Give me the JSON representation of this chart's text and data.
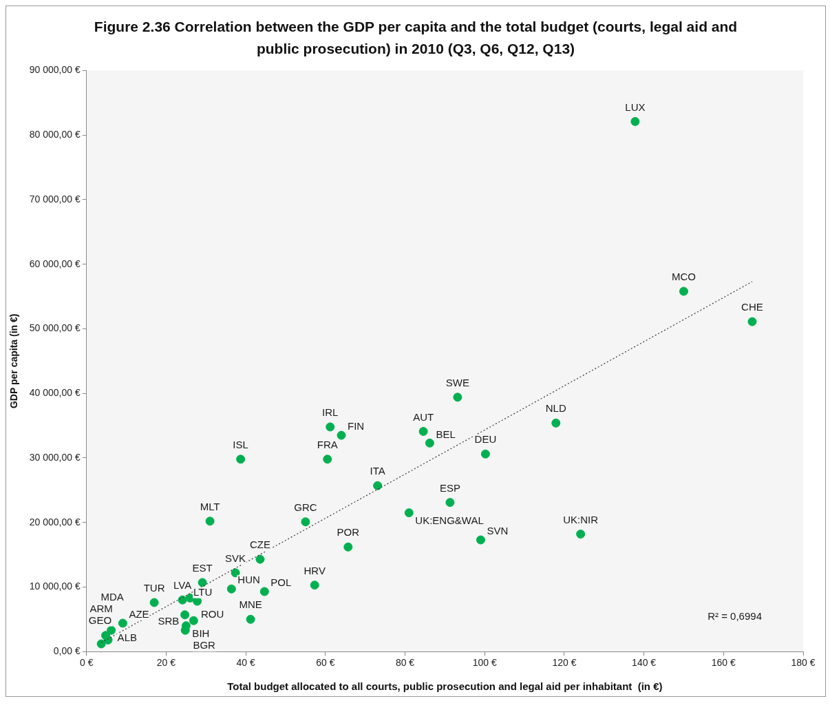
{
  "chart_data": {
    "type": "scatter",
    "title": "Figure 2.36 Correlation between the GDP per capita and the total budget (courts, legal aid and public prosecution) in 2010 (Q3, Q6, Q12, Q13)",
    "xlabel": "Total budget allocated to all courts, public prosecution and legal aid per inhabitant  (in €)",
    "ylabel": "GDP per capita (in €)",
    "xlim": [
      0,
      180
    ],
    "xticks": [
      {
        "value": 0,
        "label": "0 €"
      },
      {
        "value": 20,
        "label": "20 €"
      },
      {
        "value": 40,
        "label": "40 €"
      },
      {
        "value": 60,
        "label": "60 €"
      },
      {
        "value": 80,
        "label": "80 €"
      },
      {
        "value": 100,
        "label": "100 €"
      },
      {
        "value": 120,
        "label": "120 €"
      },
      {
        "value": 140,
        "label": "140 €"
      },
      {
        "value": 160,
        "label": "160 €"
      },
      {
        "value": 180,
        "label": "180 €"
      }
    ],
    "ylim": [
      0,
      90000
    ],
    "yticks": [
      {
        "value": 0,
        "label": "0,00 €"
      },
      {
        "value": 10000,
        "label": "10 000,00 €"
      },
      {
        "value": 20000,
        "label": "20 000,00 €"
      },
      {
        "value": 30000,
        "label": "30 000,00 €"
      },
      {
        "value": 40000,
        "label": "40 000,00 €"
      },
      {
        "value": 50000,
        "label": "50 000,00 €"
      },
      {
        "value": 60000,
        "label": "60 000,00 €"
      },
      {
        "value": 70000,
        "label": "70 000,00 €"
      },
      {
        "value": 80000,
        "label": "80 000,00 €"
      },
      {
        "value": 90000,
        "label": "90 000,00 €"
      }
    ],
    "grid": false,
    "legend": false,
    "marker": "circle",
    "series": [
      {
        "type": "scatter",
        "color": "#00b050",
        "x": [
          137.8,
          150.0,
          167.2,
          93.2,
          117.9,
          61.2,
          64.0,
          84.6,
          86.2,
          100.2,
          38.7,
          60.5,
          73.1,
          91.3,
          81.0,
          55.0,
          31.0,
          124.1,
          99.0,
          65.7,
          43.6,
          37.4,
          29.1,
          57.3,
          36.4,
          44.7,
          17.0,
          24.1,
          26.0,
          27.8,
          24.7,
          26.9,
          25.0,
          24.8,
          41.2,
          9.1,
          6.2,
          4.8,
          5.4,
          3.7
        ],
        "values": [
          82100,
          55800,
          51100,
          39400,
          35400,
          34800,
          33500,
          34100,
          32300,
          30600,
          29800,
          29800,
          25700,
          23100,
          21500,
          20100,
          20200,
          18200,
          17300,
          16200,
          14300,
          12200,
          10700,
          10300,
          9700,
          9300,
          7600,
          8000,
          8300,
          7800,
          5700,
          4800,
          4000,
          3300,
          5000,
          4400,
          3300,
          2500,
          1800,
          1200
        ]
      },
      {
        "type": "line",
        "color": "#404040",
        "line_style": "dotted",
        "marker": "none",
        "x": [
          3.7,
          167.2
        ],
        "values": [
          1400,
          57300
        ]
      }
    ],
    "annotations": [
      {
        "text": "LUX",
        "x": 137.8,
        "y": 82100
      },
      {
        "text": "MCO",
        "x": 150.0,
        "y": 55800
      },
      {
        "text": "CHE",
        "x": 167.2,
        "y": 51100
      },
      {
        "text": "SWE",
        "x": 93.2,
        "y": 39400
      },
      {
        "text": "NLD",
        "x": 117.9,
        "y": 35400
      },
      {
        "text": "IRL",
        "x": 61.2,
        "y": 34800
      },
      {
        "text": "FIN",
        "x": 64.0,
        "y": 33500
      },
      {
        "text": "AUT",
        "x": 84.6,
        "y": 34100
      },
      {
        "text": "BEL",
        "x": 86.2,
        "y": 32300
      },
      {
        "text": "DEU",
        "x": 100.2,
        "y": 30600
      },
      {
        "text": "ISL",
        "x": 38.7,
        "y": 29800
      },
      {
        "text": "FRA",
        "x": 60.5,
        "y": 29800
      },
      {
        "text": "ITA",
        "x": 73.1,
        "y": 25700
      },
      {
        "text": "ESP",
        "x": 91.3,
        "y": 23100
      },
      {
        "text": "UK:ENG&WAL",
        "x": 81.0,
        "y": 21500
      },
      {
        "text": "GRC",
        "x": 55.0,
        "y": 20100
      },
      {
        "text": "MLT",
        "x": 31.0,
        "y": 20200
      },
      {
        "text": "UK:NIR",
        "x": 124.1,
        "y": 18200
      },
      {
        "text": "SVN",
        "x": 99.0,
        "y": 17300
      },
      {
        "text": "POR",
        "x": 65.7,
        "y": 16200
      },
      {
        "text": "CZE",
        "x": 43.6,
        "y": 14300
      },
      {
        "text": "SVK",
        "x": 37.4,
        "y": 12200
      },
      {
        "text": "EST",
        "x": 29.1,
        "y": 10700
      },
      {
        "text": "HRV",
        "x": 57.3,
        "y": 10300
      },
      {
        "text": "HUN",
        "x": 36.4,
        "y": 9700
      },
      {
        "text": "POL",
        "x": 44.7,
        "y": 9300
      },
      {
        "text": "TUR",
        "x": 17.0,
        "y": 7600
      },
      {
        "text": "LVA",
        "x": 24.1,
        "y": 8000
      },
      {
        "text": "LTU",
        "x": 26.0,
        "y": 8300
      },
      {
        "text": "ROU",
        "x": 24.7,
        "y": 5700
      },
      {
        "text": "BGR",
        "x": 26.9,
        "y": 4800
      },
      {
        "text": "BIH",
        "x": 25.0,
        "y": 4000
      },
      {
        "text": "SRB",
        "x": 24.8,
        "y": 3300
      },
      {
        "text": "MNE",
        "x": 41.2,
        "y": 5000
      },
      {
        "text": "AZE",
        "x": 9.1,
        "y": 4400
      },
      {
        "text": "MDA",
        "x": 9.1,
        "y": 4400
      },
      {
        "text": "ALB",
        "x": 6.2,
        "y": 3300
      },
      {
        "text": "GEO",
        "x": 5.4,
        "y": 1800
      },
      {
        "text": "ARM",
        "x": 3.7,
        "y": 1200
      },
      "R² = 0,6994"
    ]
  }
}
